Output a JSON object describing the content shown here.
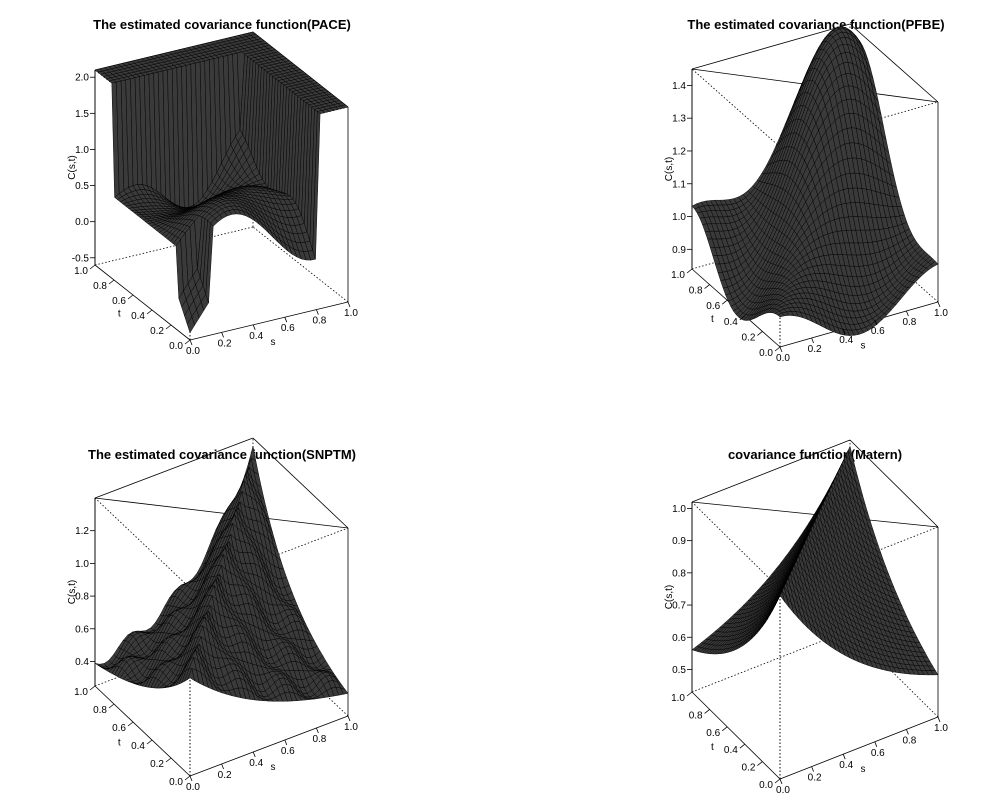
{
  "chart_data": [
    {
      "type": "surface3d",
      "id": "pace",
      "title": "The estimated covariance function(PACE)",
      "xlabel": "s",
      "ylabel": "t",
      "zlabel": "C(s,t)",
      "xlim": [
        0,
        1
      ],
      "ylim": [
        0,
        1
      ],
      "zlim": [
        -0.6,
        2.1
      ],
      "x_ticks": [
        "0.0",
        "0.2",
        "0.4",
        "0.6",
        "0.8",
        "1.0"
      ],
      "y_ticks": [
        "0.0",
        "0.2",
        "0.4",
        "0.6",
        "0.8",
        "1.0"
      ],
      "z_ticks": [
        "-0.5",
        "0.0",
        "0.5",
        "1.0",
        "1.5",
        "2.0"
      ],
      "z_tick_values": [
        -0.5,
        0.0,
        0.5,
        1.0,
        1.5,
        2.0
      ],
      "surface": "plateau at 2.1 near edges s,t≈1 with a wavy basin near 0 to 1 in the interior and a dip toward -0.5",
      "color": "#000000"
    },
    {
      "type": "surface3d",
      "id": "pfbe",
      "title": "The estimated covariance function(PFBE)",
      "xlabel": "s",
      "ylabel": "t",
      "zlabel": "C(s,t)",
      "xlim": [
        0,
        1
      ],
      "ylim": [
        0,
        1
      ],
      "zlim": [
        0.84,
        1.45
      ],
      "x_ticks": [
        "0.0",
        "0.2",
        "0.4",
        "0.6",
        "0.8",
        "1.0"
      ],
      "y_ticks": [
        "0.0",
        "0.2",
        "0.4",
        "0.6",
        "0.8",
        "1.0"
      ],
      "z_ticks": [
        "0.9",
        "1.0",
        "1.1",
        "1.2",
        "1.3",
        "1.4"
      ],
      "z_tick_values": [
        0.9,
        1.0,
        1.1,
        1.2,
        1.3,
        1.4
      ],
      "surface": "smooth ridge peaking near 1.45 at the far corner, sagging to about 0.85 in the middle",
      "color": "#000000"
    },
    {
      "type": "surface3d",
      "id": "snptm",
      "title": "The estimated covariance function(SNPTM)",
      "xlabel": "s",
      "ylabel": "t",
      "zlabel": "C(s,t)",
      "xlim": [
        0,
        1
      ],
      "ylim": [
        0,
        1
      ],
      "zlim": [
        0.25,
        1.4
      ],
      "x_ticks": [
        "0.0",
        "0.2",
        "0.4",
        "0.6",
        "0.8",
        "1.0"
      ],
      "y_ticks": [
        "0.0",
        "0.2",
        "0.4",
        "0.6",
        "0.8",
        "1.0"
      ],
      "z_ticks": [
        "0.4",
        "0.6",
        "0.8",
        "1.0",
        "1.2"
      ],
      "z_tick_values": [
        0.4,
        0.6,
        0.8,
        1.0,
        1.2
      ],
      "surface": "peaked ridge along the diagonal near 1.35, wavy flanks falling to about 0.3",
      "color": "#000000"
    },
    {
      "type": "surface3d",
      "id": "matern",
      "title": "covariance function(Matern)",
      "xlabel": "s",
      "ylabel": "t",
      "zlabel": "C(s,t)",
      "xlim": [
        0,
        1
      ],
      "ylim": [
        0,
        1
      ],
      "zlim": [
        0.43,
        1.02
      ],
      "x_ticks": [
        "0.0",
        "0.2",
        "0.4",
        "0.6",
        "0.8",
        "1.0"
      ],
      "y_ticks": [
        "0.0",
        "0.2",
        "0.4",
        "0.6",
        "0.8",
        "1.0"
      ],
      "z_ticks": [
        "0.5",
        "0.6",
        "0.7",
        "0.8",
        "0.9",
        "1.0"
      ],
      "z_tick_values": [
        0.5,
        0.6,
        0.7,
        0.8,
        0.9,
        1.0
      ],
      "surface": "ridge along s=t equal to 1.0, decaying to about 0.45 at the off-diagonal corners",
      "color": "#000000"
    }
  ]
}
